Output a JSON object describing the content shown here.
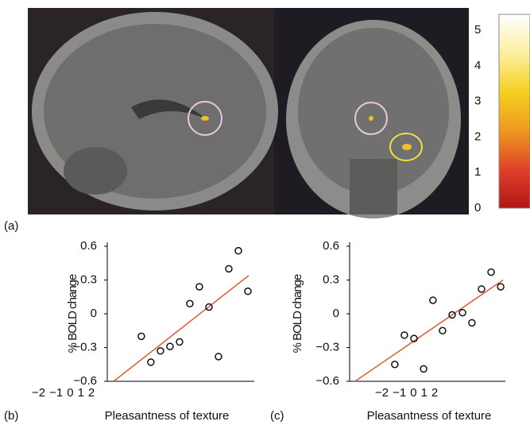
{
  "figure_a": {
    "label": "(a)",
    "colorbar": {
      "lim": [
        0,
        5.45
      ],
      "ticks": [
        0,
        1,
        2,
        3,
        4,
        5
      ]
    }
  },
  "chart_data": [
    {
      "type": "scatter",
      "panel_label": "(b)",
      "xlabel": "Pleasantness of texture",
      "ylabel": "% BOLD change",
      "x": [
        -1.61,
        -1.22,
        -0.83,
        -0.44,
        -0.05,
        0.37,
        0.76,
        1.15,
        1.54,
        1.96,
        2.35,
        2.74
      ],
      "values": [
        -0.2,
        -0.43,
        -0.33,
        -0.29,
        -0.25,
        0.09,
        0.24,
        0.06,
        -0.38,
        0.4,
        0.56,
        0.2
      ],
      "marker_color": "#111111",
      "fit_line": {
        "x": [
          -2.74,
          2.77
        ],
        "y": [
          -0.6,
          0.34
        ],
        "color": "#e0603a"
      },
      "xlim": [
        -3,
        3
      ],
      "ylim": [
        -0.6,
        0.6
      ],
      "xticks": [
        {
          "value": -2,
          "label": "−2"
        },
        {
          "value": -1,
          "label": "−1"
        },
        0,
        1,
        2
      ],
      "yticks": [
        0.6,
        0.3,
        0,
        {
          "value": -0.3,
          "label": "−0.3"
        },
        {
          "value": -0.6,
          "label": "−0.6"
        }
      ]
    },
    {
      "type": "scatter",
      "panel_label": "(c)",
      "xlabel": "Pleasantness of texture",
      "ylabel": "% BOLD change",
      "x": [
        -1.26,
        -0.89,
        -0.52,
        -0.15,
        0.21,
        0.58,
        0.95,
        1.35,
        1.71,
        2.08,
        2.45,
        2.82
      ],
      "values": [
        -0.45,
        -0.19,
        -0.22,
        -0.49,
        0.12,
        -0.15,
        -0.01,
        0.01,
        -0.08,
        0.22,
        0.37,
        0.24
      ],
      "marker_color": "#111111",
      "fit_line": {
        "x": [
          -2.79,
          2.91
        ],
        "y": [
          -0.6,
          0.3
        ],
        "color": "#e0603a"
      },
      "xlim": [
        -3,
        3
      ],
      "ylim": [
        -0.6,
        0.6
      ],
      "xticks": [
        {
          "value": -2,
          "label": "−2"
        },
        {
          "value": -1,
          "label": "−1"
        },
        0,
        1,
        2
      ],
      "yticks": [
        0.6,
        0.3,
        0,
        {
          "value": -0.3,
          "label": "−0.3"
        },
        {
          "value": -0.6,
          "label": "−0.6"
        }
      ]
    }
  ]
}
